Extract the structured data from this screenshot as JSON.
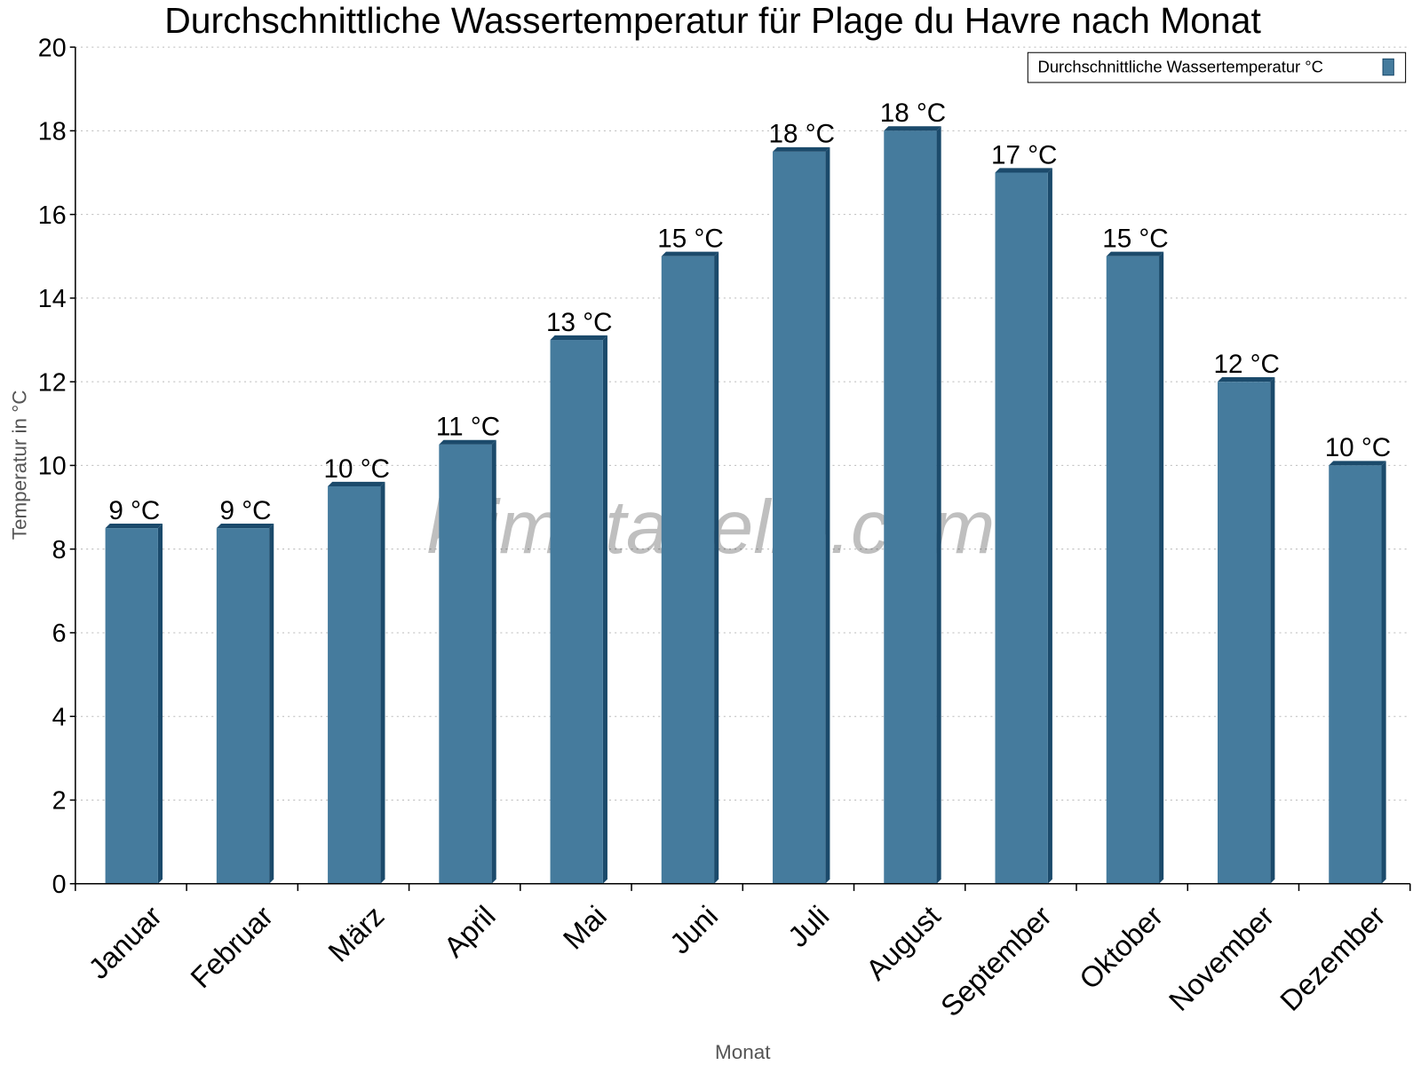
{
  "chart_data": {
    "type": "bar",
    "title": "Durchschnittliche Wassertemperatur für Plage du Havre nach Monat",
    "xlabel": "Monat",
    "ylabel": "Temperatur in °C",
    "ylim": [
      0,
      20
    ],
    "yticks": [
      0,
      2,
      4,
      6,
      8,
      10,
      12,
      14,
      16,
      18,
      20
    ],
    "grid": true,
    "legend_placement": "top-right",
    "categories": [
      "Januar",
      "Februar",
      "März",
      "April",
      "Mai",
      "Juni",
      "Juli",
      "August",
      "September",
      "Oktober",
      "November",
      "Dezember"
    ],
    "series": [
      {
        "name": "Durchschnittliche Wassertemperatur °C",
        "values": [
          8.5,
          8.5,
          9.5,
          10.5,
          13,
          15,
          17.5,
          18,
          17,
          15,
          12,
          10
        ],
        "labels": [
          "9 °C",
          "9 °C",
          "10 °C",
          "11 °C",
          "13 °C",
          "15 °C",
          "18 °C",
          "18 °C",
          "17 °C",
          "15 °C",
          "12 °C",
          "10 °C"
        ],
        "color": "#457b9d",
        "side_color": "#1b4a6b"
      }
    ],
    "watermark": "klimatabelle.com"
  }
}
